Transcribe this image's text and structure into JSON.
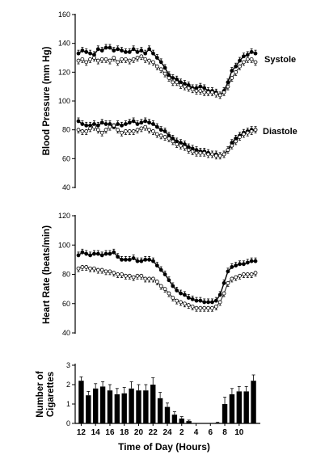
{
  "chart_data": [
    {
      "type": "line",
      "ylabel": "Blood Pressure (mm Hg)",
      "ylim": [
        40,
        160
      ],
      "yticks": [
        "40",
        "60",
        "80",
        "100",
        "120",
        "140",
        "160"
      ],
      "x_hours": [
        12,
        12.5,
        13,
        13.5,
        14,
        14.5,
        15,
        15.5,
        16,
        16.5,
        17,
        17.5,
        18,
        18.5,
        19,
        19.5,
        20,
        20.5,
        21,
        21.5,
        22,
        22.5,
        23,
        23.5,
        24,
        24.5,
        25,
        25.5,
        26,
        26.5,
        27,
        27.5,
        28,
        28.5,
        29,
        29.5,
        30,
        30.5,
        31,
        31.5,
        32,
        32.5,
        33,
        33.5,
        34,
        34.5
      ],
      "annotations": [
        {
          "text": "Systole",
          "ref_y": 131
        },
        {
          "text": "Diastole",
          "ref_y": 80
        }
      ],
      "series": [
        {
          "style": "filled",
          "values": [
            133,
            135,
            134,
            133,
            132,
            136,
            135,
            137,
            137,
            135,
            136,
            135,
            134,
            134,
            136,
            134,
            135,
            133,
            136,
            133,
            130,
            127,
            123,
            118,
            116,
            115,
            113,
            112,
            111,
            109,
            109,
            110,
            109,
            107,
            107,
            106,
            104,
            107,
            113,
            121,
            124,
            128,
            131,
            132,
            134,
            133
          ]
        },
        {
          "style": "open",
          "values": [
            128,
            129,
            127,
            129,
            130,
            128,
            129,
            129,
            128,
            130,
            127,
            129,
            129,
            128,
            129,
            130,
            131,
            129,
            128,
            127,
            124,
            122,
            119,
            116,
            113,
            113,
            111,
            110,
            109,
            108,
            107,
            107,
            106,
            106,
            106,
            105,
            104,
            106,
            110,
            116,
            120,
            124,
            127,
            129,
            129,
            127
          ]
        },
        {
          "style": "filled",
          "values": [
            86,
            84,
            83,
            83,
            84,
            83,
            85,
            84,
            84,
            82,
            84,
            83,
            84,
            85,
            86,
            84,
            85,
            86,
            85,
            84,
            82,
            80,
            79,
            76,
            74,
            72,
            71,
            70,
            68,
            67,
            66,
            65,
            65,
            64,
            63,
            63,
            62,
            63,
            66,
            71,
            74,
            76,
            78,
            79,
            80,
            80
          ]
        },
        {
          "style": "open",
          "values": [
            80,
            79,
            79,
            81,
            82,
            80,
            78,
            80,
            82,
            83,
            80,
            78,
            79,
            79,
            79,
            80,
            81,
            82,
            80,
            79,
            77,
            76,
            75,
            74,
            72,
            70,
            69,
            68,
            66,
            65,
            64,
            64,
            64,
            63,
            63,
            62,
            62,
            63,
            66,
            69,
            72,
            75,
            77,
            78,
            79,
            80
          ]
        }
      ]
    },
    {
      "type": "line",
      "ylabel": "Heart Rate (beats/min)",
      "ylim": [
        40,
        120
      ],
      "yticks": [
        "40",
        "60",
        "80",
        "100",
        "120"
      ],
      "x_hours": [
        12,
        12.5,
        13,
        13.5,
        14,
        14.5,
        15,
        15.5,
        16,
        16.5,
        17,
        17.5,
        18,
        18.5,
        19,
        19.5,
        20,
        20.5,
        21,
        21.5,
        22,
        22.5,
        23,
        23.5,
        24,
        24.5,
        25,
        25.5,
        26,
        26.5,
        27,
        27.5,
        28,
        28.5,
        29,
        29.5,
        30,
        30.5,
        31,
        31.5,
        32,
        32.5,
        33,
        33.5,
        34,
        34.5
      ],
      "series": [
        {
          "style": "filled",
          "values": [
            93,
            95,
            94,
            93,
            94,
            94,
            93,
            94,
            94,
            95,
            92,
            90,
            90,
            90,
            91,
            89,
            89,
            90,
            90,
            89,
            86,
            83,
            80,
            76,
            72,
            69,
            67,
            66,
            64,
            63,
            62,
            62,
            61,
            61,
            61,
            62,
            66,
            74,
            82,
            85,
            86,
            87,
            87,
            88,
            89,
            89
          ]
        },
        {
          "style": "open",
          "values": [
            84,
            85,
            85,
            84,
            84,
            83,
            83,
            82,
            82,
            81,
            80,
            80,
            79,
            79,
            78,
            79,
            79,
            77,
            77,
            77,
            75,
            72,
            70,
            67,
            64,
            62,
            61,
            60,
            59,
            58,
            57,
            57,
            57,
            57,
            57,
            58,
            61,
            67,
            74,
            77,
            78,
            79,
            80,
            80,
            80,
            81
          ]
        }
      ]
    },
    {
      "type": "bar",
      "ylabel": "Number of Cigarettes",
      "xlabel": "Time of Day (Hours)",
      "ylim": [
        0,
        3
      ],
      "yticks": [
        "0",
        "1",
        "2",
        "3"
      ],
      "xticks": [
        "12",
        "14",
        "16",
        "18",
        "20",
        "22",
        "24",
        "2",
        "4",
        "6",
        "8",
        "10"
      ],
      "values": [
        2.2,
        1.45,
        1.8,
        1.9,
        1.7,
        1.5,
        1.55,
        1.8,
        1.7,
        1.7,
        2.0,
        1.3,
        0.85,
        0.45,
        0.25,
        0.12,
        0,
        0,
        0,
        0.03,
        1.0,
        1.5,
        1.65,
        1.65,
        2.2
      ],
      "errors": [
        0.2,
        0.2,
        0.25,
        0.25,
        0.3,
        0.3,
        0.3,
        0.35,
        0.3,
        0.3,
        0.35,
        0.3,
        0.2,
        0.15,
        0.1,
        0.05,
        0,
        0,
        0,
        0.03,
        0.35,
        0.3,
        0.25,
        0.25,
        0.3
      ]
    }
  ]
}
